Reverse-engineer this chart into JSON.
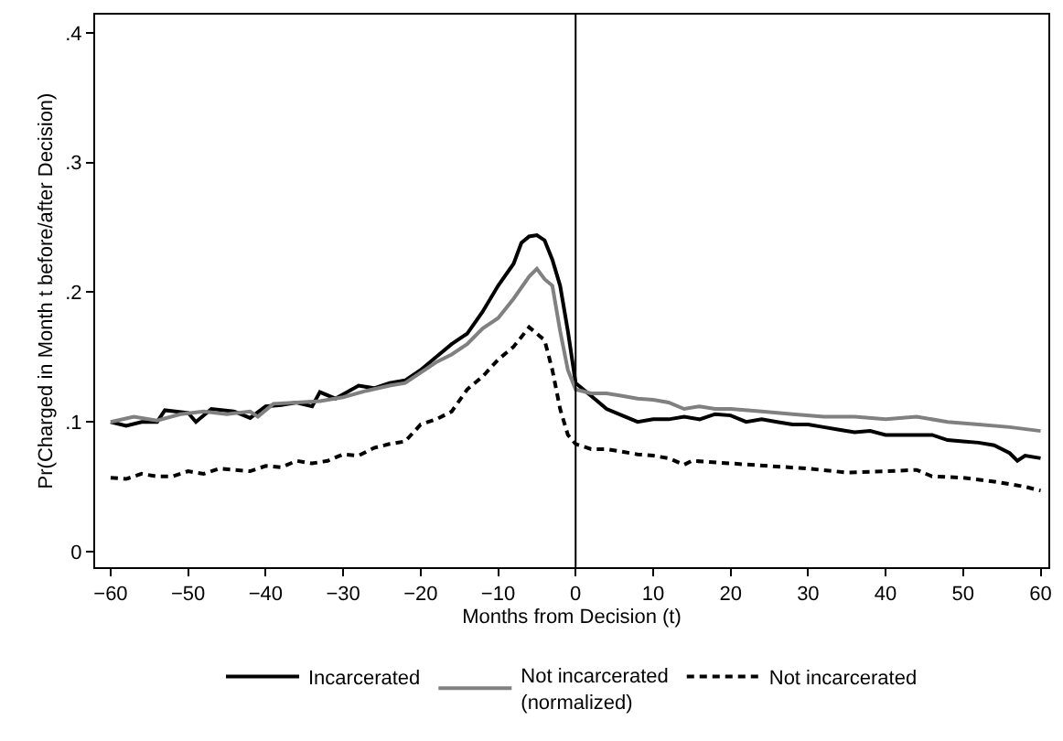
{
  "chart_data": {
    "type": "line",
    "xlabel": "Months from Decision (t)",
    "ylabel": "Pr(Charged in Month t before/after Decision)",
    "xlim": [
      -62,
      61
    ],
    "ylim": [
      -0.012,
      0.414
    ],
    "xticks": [
      {
        "value": -60,
        "label": "−60"
      },
      {
        "value": -50,
        "label": "−50"
      },
      {
        "value": -40,
        "label": "−40"
      },
      {
        "value": -30,
        "label": "−30"
      },
      {
        "value": -20,
        "label": "−20"
      },
      {
        "value": -10,
        "label": "−10"
      },
      0,
      10,
      20,
      30,
      40,
      50,
      60
    ],
    "yticks": [
      0,
      {
        "value": 0.1,
        "label": ".1"
      },
      {
        "value": 0.2,
        "label": ".2"
      },
      {
        "value": 0.3,
        "label": ".3"
      },
      {
        "value": 0.4,
        "label": ".4"
      }
    ],
    "legend": "bottom",
    "marker": "none",
    "ref_lines": [
      {
        "axis": "x",
        "value": 0,
        "color": "#000000",
        "line_style": "solid"
      }
    ],
    "series": [
      {
        "name": "Incarcerated",
        "color": "#000000",
        "line_style": "solid",
        "x": [
          -60,
          -58,
          -56,
          -54,
          -53,
          -50,
          -49,
          -47,
          -44,
          -42,
          -40,
          -38,
          -36,
          -34,
          -33,
          -31,
          -28,
          -26,
          -24,
          -22,
          -20,
          -18,
          -16,
          -14,
          -12,
          -10,
          -8,
          -7,
          -6,
          -5,
          -4,
          -3,
          -2,
          -1,
          0,
          2,
          4,
          6,
          8,
          10,
          12,
          14,
          16,
          18,
          20,
          22,
          24,
          26,
          28,
          30,
          32,
          34,
          36,
          38,
          40,
          42,
          44,
          46,
          48,
          50,
          52,
          54,
          56,
          57,
          58,
          60
        ],
        "values": [
          0.1,
          0.097,
          0.1,
          0.1,
          0.109,
          0.107,
          0.1,
          0.11,
          0.108,
          0.103,
          0.112,
          0.113,
          0.115,
          0.112,
          0.123,
          0.118,
          0.128,
          0.126,
          0.13,
          0.132,
          0.14,
          0.15,
          0.16,
          0.168,
          0.185,
          0.205,
          0.222,
          0.238,
          0.243,
          0.244,
          0.24,
          0.225,
          0.205,
          0.17,
          0.13,
          0.12,
          0.11,
          0.105,
          0.1,
          0.102,
          0.102,
          0.104,
          0.102,
          0.106,
          0.105,
          0.1,
          0.102,
          0.1,
          0.098,
          0.098,
          0.096,
          0.094,
          0.092,
          0.093,
          0.09,
          0.09,
          0.09,
          0.09,
          0.086,
          0.085,
          0.084,
          0.082,
          0.076,
          0.07,
          0.074,
          0.072
        ]
      },
      {
        "name": "Not incarcerated\n(normalized)",
        "color": "#808080",
        "line_style": "solid",
        "x": [
          -60,
          -57,
          -54,
          -51,
          -48,
          -45,
          -42,
          -41,
          -39,
          -36,
          -33,
          -30,
          -27,
          -24,
          -22,
          -20,
          -18,
          -16,
          -14,
          -12,
          -10,
          -8,
          -6,
          -5,
          -4,
          -3,
          -2,
          -1,
          0,
          2,
          4,
          6,
          8,
          10,
          12,
          14,
          16,
          18,
          20,
          24,
          28,
          32,
          36,
          40,
          44,
          48,
          52,
          56,
          60
        ],
        "values": [
          0.1,
          0.104,
          0.101,
          0.106,
          0.108,
          0.106,
          0.108,
          0.104,
          0.114,
          0.115,
          0.116,
          0.119,
          0.124,
          0.128,
          0.13,
          0.138,
          0.146,
          0.152,
          0.16,
          0.172,
          0.18,
          0.195,
          0.212,
          0.218,
          0.21,
          0.205,
          0.17,
          0.14,
          0.125,
          0.122,
          0.122,
          0.12,
          0.118,
          0.117,
          0.115,
          0.11,
          0.112,
          0.11,
          0.11,
          0.108,
          0.106,
          0.104,
          0.104,
          0.102,
          0.104,
          0.1,
          0.098,
          0.096,
          0.093
        ]
      },
      {
        "name": "Not incarcerated",
        "color": "#000000",
        "line_style": "dashed",
        "x": [
          -60,
          -58,
          -56,
          -54,
          -52,
          -50,
          -48,
          -46,
          -44,
          -42,
          -40,
          -38,
          -36,
          -34,
          -32,
          -30,
          -28,
          -26,
          -24,
          -22,
          -20,
          -18,
          -16,
          -14,
          -12,
          -10,
          -8,
          -6,
          -5,
          -4,
          -3,
          -2,
          -1,
          0,
          2,
          4,
          6,
          8,
          10,
          12,
          14,
          15,
          20,
          25,
          30,
          35,
          40,
          44,
          46,
          50,
          54,
          58,
          60
        ],
        "values": [
          0.057,
          0.056,
          0.06,
          0.058,
          0.058,
          0.062,
          0.06,
          0.064,
          0.063,
          0.062,
          0.066,
          0.065,
          0.07,
          0.068,
          0.07,
          0.075,
          0.074,
          0.08,
          0.083,
          0.085,
          0.098,
          0.102,
          0.108,
          0.125,
          0.135,
          0.148,
          0.158,
          0.173,
          0.168,
          0.163,
          0.14,
          0.11,
          0.09,
          0.083,
          0.079,
          0.079,
          0.077,
          0.075,
          0.074,
          0.072,
          0.067,
          0.07,
          0.068,
          0.066,
          0.064,
          0.061,
          0.062,
          0.063,
          0.058,
          0.057,
          0.054,
          0.05,
          0.047
        ]
      }
    ]
  }
}
